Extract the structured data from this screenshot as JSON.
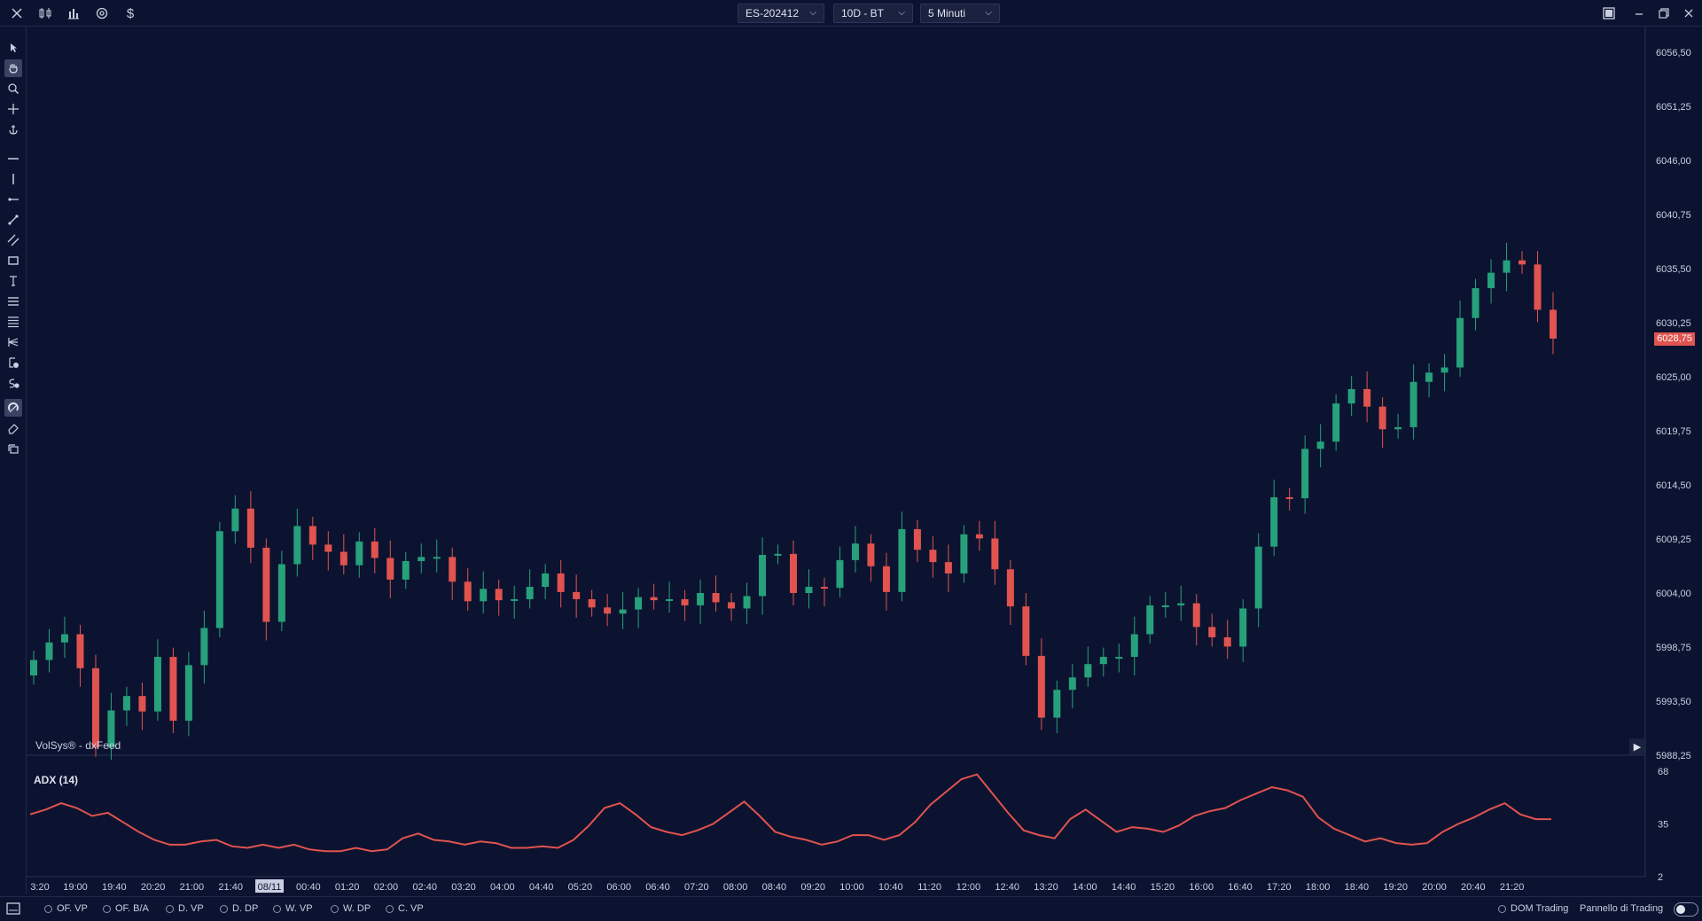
{
  "header": {
    "symbol": "ES-202412",
    "range": "10D - BT",
    "timeframe": "5 Minuti",
    "icons": [
      "close-icon",
      "candles-icon",
      "bar-chart-icon",
      "settings-icon",
      "dollar-icon"
    ],
    "window_icons": [
      "maximize-panel-icon",
      "minimize-icon",
      "restore-icon",
      "close-window-icon"
    ]
  },
  "toolbar": {
    "tools": [
      "cursor",
      "hand",
      "zoom",
      "crosshair",
      "anchor",
      "horizontal-line",
      "vertical-line",
      "ray",
      "trend-line",
      "channel",
      "rectangle",
      "text",
      "fib-levels",
      "lines-list",
      "pitchfork",
      "price-note",
      "time-note",
      "magnet",
      "eraser",
      "layers"
    ]
  },
  "chart": {
    "source_label": "VolSys® - dxFeed",
    "current_price": "6028,75",
    "price_axis": [
      "6056,50",
      "6051,25",
      "6046,00",
      "6040,75",
      "6035,50",
      "6030,25",
      "6025,00",
      "6019,75",
      "6014,50",
      "6009,25",
      "6004,00",
      "5998,75",
      "5993,50",
      "5988,25"
    ],
    "time_axis": [
      "3:20",
      "19:00",
      "19:40",
      "20:20",
      "21:00",
      "21:40",
      "08/11",
      "00:40",
      "01:20",
      "02:00",
      "02:40",
      "03:20",
      "04:00",
      "04:40",
      "05:20",
      "06:00",
      "06:40",
      "07:20",
      "08:00",
      "08:40",
      "09:20",
      "10:00",
      "10:40",
      "11:20",
      "12:00",
      "12:40",
      "13:20",
      "14:00",
      "14:40",
      "15:20",
      "16:00",
      "16:40",
      "17:20",
      "18:00",
      "18:40",
      "19:20",
      "20:00",
      "20:40",
      "21:20"
    ],
    "indicator": {
      "label": "ADX (14)",
      "axis": [
        "68",
        "35",
        "2"
      ]
    },
    "colors": {
      "background": "#0c1330",
      "up": "#26a17b",
      "down": "#e0534f"
    }
  },
  "chart_data": {
    "type": "candlestick",
    "series": [
      {
        "name": "",
        "close": [
          5997.5,
          5999.2,
          6000.0,
          5996.7,
          5989.0,
          5992.6,
          5994.0,
          5992.5,
          5997.8,
          5991.6,
          5997.0,
          6000.6,
          6010.0,
          6012.2,
          6008.4,
          6001.2,
          6006.8,
          6010.5,
          6008.7,
          6008.0,
          6006.7,
          6009.0,
          6007.4,
          6005.3,
          6007.1,
          6007.5,
          6007.5,
          6005.1,
          6003.2,
          6004.4,
          6003.3,
          6003.4,
          6004.6,
          6005.9,
          6004.1,
          6003.4,
          6002.6,
          6002.0,
          6002.4,
          6003.6,
          6003.3,
          6003.4,
          6002.8,
          6004.0,
          6003.1,
          6002.5,
          6003.7,
          6007.7,
          6007.8,
          6004.0,
          6004.6,
          6004.5,
          6007.2,
          6008.8,
          6006.6,
          6004.1,
          6010.2,
          6008.2,
          6007.0,
          6005.9,
          6009.7,
          6009.3,
          6006.3,
          6002.7,
          5997.9,
          5991.9,
          5994.6,
          5995.8,
          5997.1,
          5997.8,
          5997.8,
          6000.0,
          6002.8,
          6002.8,
          6003.0,
          6000.7,
          5999.7,
          5998.8,
          6002.5,
          6008.5,
          6013.3,
          6013.2,
          6018.0,
          6018.7,
          6022.4,
          6023.8,
          6022.1,
          6019.9,
          6020.1,
          6024.5,
          6025.4,
          6025.9,
          6030.7,
          6033.6,
          6035.1,
          6036.3,
          6035.9,
          6031.5,
          6028.7
        ]
      },
      {
        "name": "ADX (14)",
        "values": [
          41,
          44,
          48,
          45,
          40,
          42,
          36,
          30,
          25,
          22,
          22,
          24,
          25,
          21,
          20,
          22,
          20,
          22,
          19,
          18,
          18,
          20,
          18,
          19,
          26,
          29,
          25,
          24,
          22,
          24,
          23,
          20,
          20,
          21,
          20,
          25,
          34,
          45,
          48,
          41,
          33,
          30,
          28,
          31,
          35,
          42,
          49,
          40,
          30,
          27,
          25,
          22,
          24,
          28,
          28,
          25,
          28,
          36,
          47,
          55,
          63,
          66,
          54,
          42,
          31,
          28,
          26,
          38,
          44,
          37,
          30,
          33,
          32,
          30,
          34,
          40,
          43,
          45,
          50,
          54,
          58,
          56,
          52,
          39,
          32,
          28,
          24,
          26,
          23,
          22,
          23,
          30,
          35,
          39,
          44,
          48,
          41,
          38,
          38
        ]
      }
    ],
    "ylim": [
      5988.25,
      6056.5
    ],
    "adx_ylim": [
      2,
      68
    ]
  },
  "footer": {
    "items": [
      "OF. VP",
      "OF. B/A",
      "D. VP",
      "D. DP",
      "W. VP",
      "W. DP",
      "C. VP"
    ],
    "dom_trading": "DOM Trading",
    "panel_label": "Pannello di Trading"
  }
}
